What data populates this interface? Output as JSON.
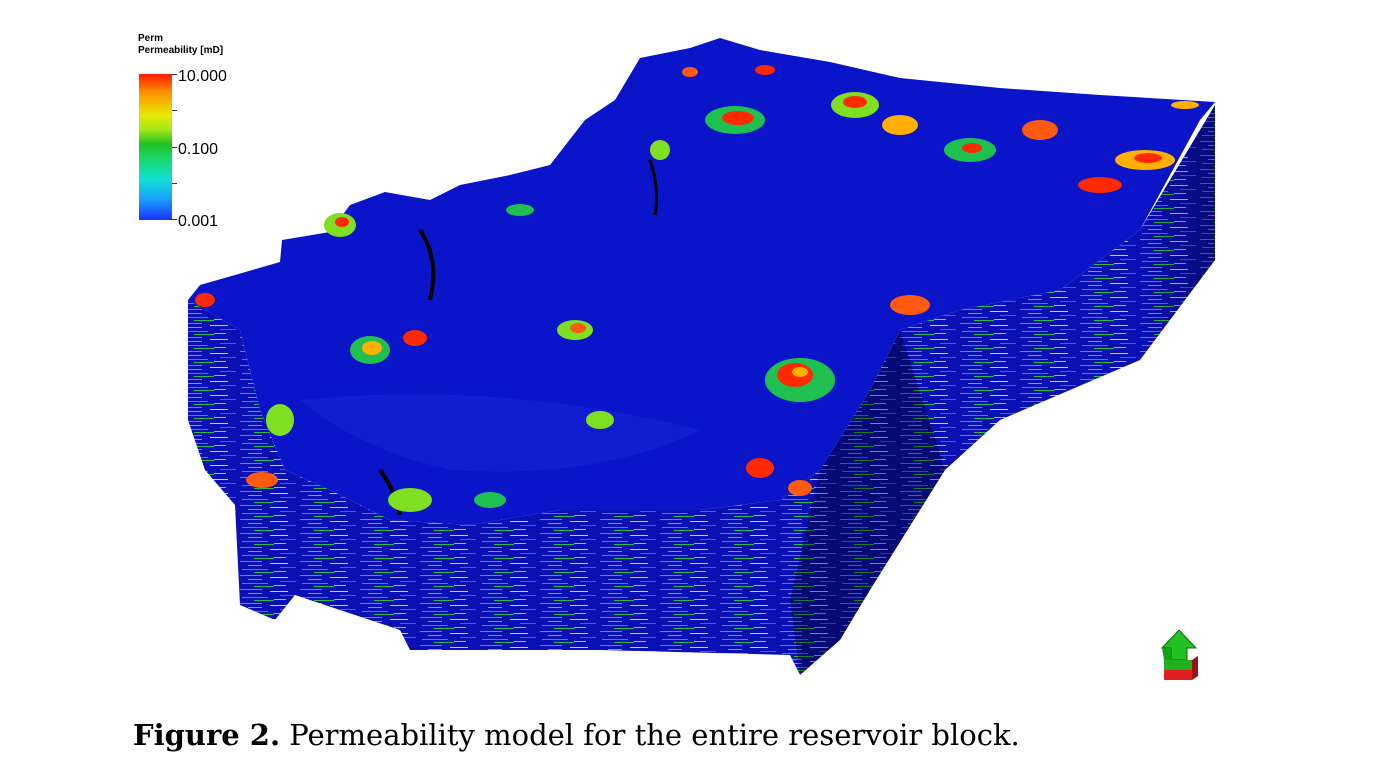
{
  "legend": {
    "title": "Perm",
    "subtitle": "Permeability [mD]",
    "max_label": "10.000",
    "mid_label": "0.100",
    "min_label": "0.001",
    "colors": [
      "#ff1a00",
      "#ff8c00",
      "#e8e800",
      "#20c020",
      "#10e0d0",
      "#1a30ff"
    ]
  },
  "model": {
    "surface_color": "#0a14c8",
    "side_color": "#0a0fa0",
    "patch_colors": [
      "#ff2a00",
      "#ffb000",
      "#7ee020",
      "#20c050"
    ]
  },
  "compass_icon": "north-arrow-compass-icon",
  "caption": {
    "label": "Figure 2.",
    "text": " Permeability model for the entire reservoir block."
  }
}
